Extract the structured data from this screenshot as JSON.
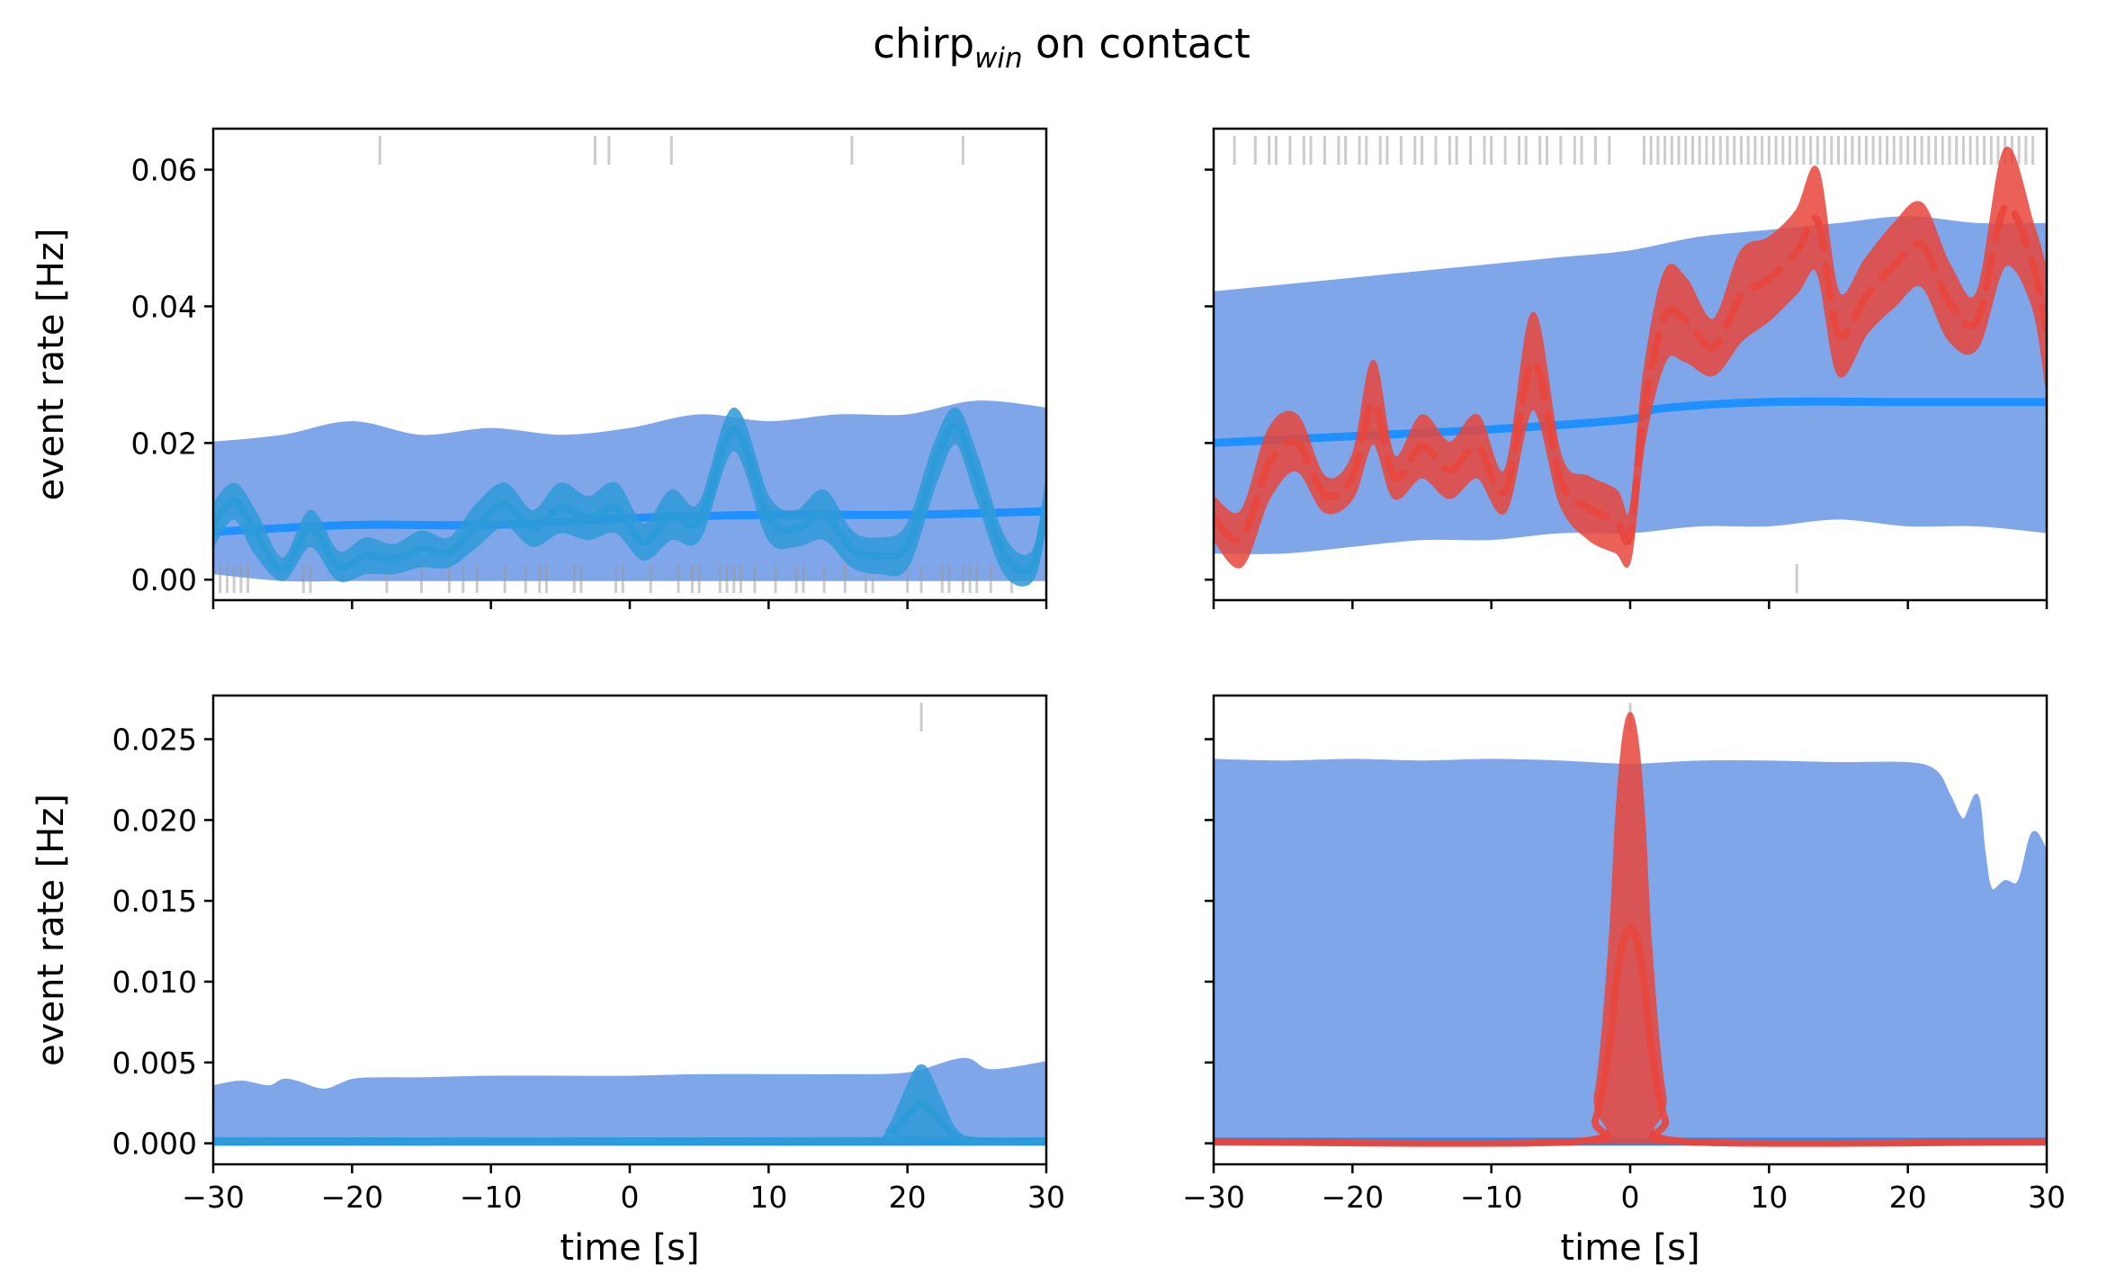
{
  "figure": {
    "suptitle_main": "chirp",
    "suptitle_sub": "win",
    "suptitle_rest": " on contact"
  },
  "colors": {
    "band": "#6f9ae8",
    "median_line": "#1e90ff",
    "observed_blue": "#2e9bd8",
    "observed_red": "#e8463c",
    "event_tick": "#9a9a9a"
  },
  "chart_data": [
    {
      "id": "top-left",
      "type": "line",
      "xlabel": "",
      "ylabel": "event rate [Hz]",
      "xlim": [
        -30,
        30
      ],
      "ylim": [
        -0.003,
        0.066
      ],
      "xticks": [
        -30,
        -20,
        -10,
        0,
        10,
        20,
        30
      ],
      "yticks": [
        0.0,
        0.02,
        0.04,
        0.06
      ],
      "ytick_labels": [
        "0.00",
        "0.02",
        "0.04",
        "0.06"
      ],
      "x_tick_labels_visible": false,
      "y_tick_labels_visible": true,
      "observed_color": "observed_blue",
      "observed_dashed": false,
      "band": {
        "x": [
          -30,
          -25,
          -20,
          -15,
          -10,
          -5,
          0,
          5,
          10,
          15,
          20,
          25,
          30
        ],
        "upper": [
          0.02,
          0.021,
          0.023,
          0.021,
          0.022,
          0.021,
          0.022,
          0.024,
          0.023,
          0.024,
          0.024,
          0.026,
          0.025
        ],
        "lower": [
          0.001,
          0.0,
          0.0,
          0.0,
          0.0,
          0.0,
          0.0,
          0.0,
          0.0,
          0.0,
          0.0,
          0.0,
          0.0
        ]
      },
      "median": {
        "x": [
          -30,
          -20,
          -10,
          0,
          10,
          20,
          30
        ],
        "y": [
          0.007,
          0.008,
          0.008,
          0.009,
          0.0095,
          0.0095,
          0.01
        ]
      },
      "observed": {
        "x": [
          -30,
          -28.5,
          -27,
          -25,
          -23,
          -21,
          -19,
          -17,
          -15,
          -13,
          -11,
          -9,
          -7,
          -5,
          -3,
          -1,
          1,
          3,
          5,
          7.5,
          10,
          12,
          14,
          16,
          18,
          20,
          22,
          23.5,
          25,
          27,
          29,
          30
        ],
        "upper": [
          0.011,
          0.014,
          0.01,
          0.003,
          0.01,
          0.004,
          0.006,
          0.005,
          0.007,
          0.006,
          0.011,
          0.014,
          0.01,
          0.014,
          0.012,
          0.014,
          0.008,
          0.013,
          0.011,
          0.025,
          0.012,
          0.01,
          0.013,
          0.007,
          0.006,
          0.008,
          0.02,
          0.025,
          0.018,
          0.006,
          0.004,
          0.014
        ],
        "lower": [
          0.005,
          0.009,
          0.004,
          0.0,
          0.005,
          0.0,
          0.001,
          0.001,
          0.002,
          0.002,
          0.005,
          0.008,
          0.005,
          0.007,
          0.006,
          0.007,
          0.003,
          0.006,
          0.006,
          0.019,
          0.006,
          0.005,
          0.006,
          0.002,
          0.001,
          0.002,
          0.014,
          0.02,
          0.012,
          0.001,
          0.0,
          0.009
        ]
      },
      "event_ticks_top": [
        -18,
        -2.5,
        -1.5,
        3,
        16,
        24
      ],
      "event_ticks_bottom": [
        -29.5,
        -29,
        -28.5,
        -28,
        -27.5,
        -23.5,
        -23,
        -17.5,
        -15,
        -13,
        -12,
        -11,
        -9,
        -7.5,
        -6.5,
        -6,
        -4,
        -3.5,
        -1,
        -0.5,
        1.5,
        3.5,
        4.5,
        5,
        6.5,
        7,
        7.5,
        8,
        9,
        10.5,
        12,
        12.5,
        14,
        15.5,
        17,
        17.5,
        20,
        21,
        22.5,
        23,
        24,
        24.5,
        25,
        26,
        27.5
      ]
    },
    {
      "id": "top-right",
      "type": "line",
      "xlabel": "",
      "ylabel": "",
      "xlim": [
        -30,
        30
      ],
      "ylim": [
        -0.003,
        0.066
      ],
      "xticks": [
        -30,
        -20,
        -10,
        0,
        10,
        20,
        30
      ],
      "yticks": [
        0.0,
        0.02,
        0.04,
        0.06
      ],
      "ytick_labels": [
        "0.00",
        "0.02",
        "0.04",
        "0.06"
      ],
      "x_tick_labels_visible": false,
      "y_tick_labels_visible": false,
      "observed_color": "observed_red",
      "observed_dashed": true,
      "band": {
        "x": [
          -30,
          -25,
          -20,
          -15,
          -10,
          -5,
          0,
          5,
          10,
          15,
          20,
          25,
          30
        ],
        "upper": [
          0.042,
          0.043,
          0.044,
          0.045,
          0.046,
          0.047,
          0.048,
          0.05,
          0.051,
          0.052,
          0.053,
          0.052,
          0.052
        ],
        "lower": [
          0.004,
          0.004,
          0.005,
          0.006,
          0.006,
          0.007,
          0.007,
          0.008,
          0.008,
          0.009,
          0.008,
          0.008,
          0.007
        ]
      },
      "median": {
        "x": [
          -30,
          -20,
          -10,
          0,
          2,
          10,
          20,
          30
        ],
        "y": [
          0.02,
          0.021,
          0.022,
          0.0235,
          0.025,
          0.026,
          0.026,
          0.026
        ]
      },
      "observed": {
        "x": [
          -30,
          -28,
          -26,
          -24,
          -22,
          -20,
          -18.5,
          -17,
          -15,
          -13,
          -11,
          -9,
          -7,
          -5,
          -3,
          -1,
          0,
          1,
          2.5,
          4,
          6,
          8,
          10,
          12,
          13.5,
          15,
          17,
          19,
          21,
          23,
          25,
          27,
          29,
          30
        ],
        "upper": [
          0.012,
          0.01,
          0.022,
          0.024,
          0.015,
          0.018,
          0.032,
          0.018,
          0.024,
          0.02,
          0.024,
          0.016,
          0.039,
          0.018,
          0.015,
          0.013,
          0.01,
          0.03,
          0.045,
          0.044,
          0.038,
          0.048,
          0.05,
          0.054,
          0.06,
          0.042,
          0.047,
          0.052,
          0.055,
          0.046,
          0.042,
          0.063,
          0.052,
          0.045
        ],
        "lower": [
          0.006,
          0.002,
          0.012,
          0.016,
          0.01,
          0.012,
          0.02,
          0.012,
          0.015,
          0.012,
          0.015,
          0.01,
          0.025,
          0.011,
          0.006,
          0.004,
          0.003,
          0.02,
          0.032,
          0.032,
          0.03,
          0.035,
          0.038,
          0.042,
          0.045,
          0.03,
          0.036,
          0.04,
          0.043,
          0.035,
          0.034,
          0.046,
          0.04,
          0.028
        ]
      },
      "event_ticks_top": [
        -28.5,
        -27,
        -26,
        -25.5,
        -24.5,
        -23.5,
        -23,
        -22,
        -21,
        -20.5,
        -19.5,
        -19,
        -18,
        -17.5,
        -16.5,
        -15.5,
        -15,
        -14,
        -13,
        -12.5,
        -11.5,
        -10.5,
        -10,
        -9,
        -8,
        -7.5,
        -6.5,
        -6,
        -5,
        -4,
        -3.5,
        -2.5,
        -1.5,
        1,
        1.5,
        2,
        2.5,
        3,
        3.5,
        4,
        4.5,
        5,
        5.5,
        6,
        6.5,
        7,
        7.5,
        8,
        8.5,
        9,
        9.5,
        10,
        10.5,
        11,
        11.5,
        12,
        12.5,
        13,
        13.5,
        14,
        14.5,
        15,
        15.5,
        16,
        16.5,
        17,
        17.5,
        18,
        18.5,
        19,
        19.5,
        20,
        20.5,
        21,
        21.5,
        22,
        22.5,
        23,
        23.5,
        24,
        24.5,
        25,
        25.5,
        26,
        26.5,
        27,
        27.5,
        28,
        28.5,
        29
      ],
      "event_ticks_bottom": [
        12
      ]
    },
    {
      "id": "bottom-left",
      "type": "line",
      "xlabel": "time [s]",
      "ylabel": "event rate [Hz]",
      "xlim": [
        -30,
        30
      ],
      "ylim": [
        -0.0013,
        0.0277
      ],
      "xticks": [
        -30,
        -20,
        -10,
        0,
        10,
        20,
        30
      ],
      "xtick_labels": [
        "−30",
        "−20",
        "−10",
        "0",
        "10",
        "20",
        "30"
      ],
      "yticks": [
        0.0,
        0.005,
        0.01,
        0.015,
        0.02,
        0.025
      ],
      "ytick_labels": [
        "0.000",
        "0.005",
        "0.010",
        "0.015",
        "0.020",
        "0.025"
      ],
      "x_tick_labels_visible": true,
      "y_tick_labels_visible": true,
      "observed_color": "observed_blue",
      "observed_dashed": false,
      "band": {
        "x": [
          -30,
          -28,
          -26,
          -25,
          -24,
          -22,
          -20,
          -18,
          -15,
          -10,
          -5,
          0,
          5,
          10,
          15,
          20,
          24,
          26,
          30
        ],
        "upper": [
          0.0035,
          0.0038,
          0.0035,
          0.0039,
          0.0038,
          0.0033,
          0.0039,
          0.004,
          0.004,
          0.0041,
          0.0041,
          0.0041,
          0.0042,
          0.0042,
          0.0042,
          0.0043,
          0.0052,
          0.0045,
          0.005
        ],
        "lower": [
          0,
          0,
          0,
          0,
          0,
          0,
          0,
          0,
          0,
          0,
          0,
          0,
          0,
          0,
          0,
          0,
          0,
          0,
          0
        ]
      },
      "median": {
        "x": [
          -30,
          30
        ],
        "y": [
          0.0001,
          0.0001
        ]
      },
      "observed": {
        "x": [
          -30,
          17,
          18.5,
          19.5,
          20.5,
          21,
          21.5,
          22.5,
          23.5,
          25,
          30
        ],
        "upper": [
          0.0003,
          0.0003,
          0.0008,
          0.0025,
          0.0044,
          0.0048,
          0.0044,
          0.0025,
          0.0008,
          0.0003,
          0.0003
        ],
        "lower": [
          0,
          0,
          0,
          0,
          0,
          0,
          0,
          0,
          0,
          0,
          0
        ]
      },
      "event_ticks_top": [
        21
      ],
      "event_ticks_bottom": []
    },
    {
      "id": "bottom-right",
      "type": "line",
      "xlabel": "time [s]",
      "ylabel": "",
      "xlim": [
        -30,
        30
      ],
      "ylim": [
        -0.0013,
        0.0277
      ],
      "xticks": [
        -30,
        -20,
        -10,
        0,
        10,
        20,
        30
      ],
      "xtick_labels": [
        "−30",
        "−20",
        "−10",
        "0",
        "10",
        "20",
        "30"
      ],
      "yticks": [
        0.0,
        0.005,
        0.01,
        0.015,
        0.02,
        0.025
      ],
      "ytick_labels": [
        "0.000",
        "0.005",
        "0.010",
        "0.015",
        "0.020",
        "0.025"
      ],
      "x_tick_labels_visible": true,
      "y_tick_labels_visible": false,
      "observed_color": "observed_red",
      "observed_dashed": false,
      "band": {
        "x": [
          -30,
          -25,
          -20,
          -15,
          -10,
          -5,
          0,
          5,
          10,
          15,
          20,
          22,
          23,
          24,
          25,
          25.5,
          26,
          27,
          28,
          29,
          30
        ],
        "upper": [
          0.0237,
          0.0236,
          0.0237,
          0.0236,
          0.0237,
          0.0236,
          0.0234,
          0.0236,
          0.0236,
          0.0235,
          0.0235,
          0.023,
          0.0215,
          0.02,
          0.0215,
          0.018,
          0.0157,
          0.0162,
          0.0162,
          0.0192,
          0.018
        ],
        "lower": [
          0,
          0,
          0,
          0,
          0,
          0,
          0,
          0,
          0,
          0,
          0,
          0,
          0,
          0,
          0,
          0,
          0,
          0,
          0,
          0,
          0
        ]
      },
      "median": {
        "x": [
          -30,
          30
        ],
        "y": [
          0.0001,
          0.0001
        ]
      },
      "observed": {
        "x": [
          -30,
          -4,
          -2.5,
          -1.5,
          -1,
          -0.5,
          0,
          0.5,
          1,
          1.5,
          2.5,
          4,
          30
        ],
        "upper": [
          0.0002,
          0.0002,
          0.003,
          0.012,
          0.02,
          0.025,
          0.0266,
          0.025,
          0.02,
          0.012,
          0.003,
          0.0002,
          0.0002
        ],
        "lower": [
          0,
          0,
          0,
          0,
          0,
          0,
          0,
          0,
          0,
          0,
          0,
          0,
          0
        ]
      },
      "event_ticks_top": [
        0
      ],
      "event_ticks_bottom": []
    }
  ]
}
